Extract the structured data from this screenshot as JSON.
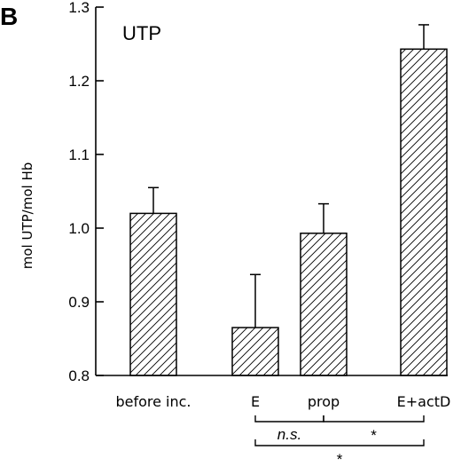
{
  "chart_data": {
    "type": "bar",
    "panel_label": "B",
    "title": "UTP",
    "ylabel": "mol UTP/mol Hb",
    "ylim": [
      0.8,
      1.3
    ],
    "yticks": [
      0.8,
      0.9,
      1.0,
      1.1,
      1.2,
      1.3
    ],
    "ytick_labels": [
      "0.8",
      "0.9",
      "1.0",
      "1.1",
      "1.2",
      "1.3"
    ],
    "categories": [
      "before inc.",
      "E",
      "prop",
      "E+actD"
    ],
    "values": [
      1.02,
      0.865,
      0.993,
      1.243
    ],
    "errors": [
      0.035,
      0.072,
      0.04,
      0.033
    ],
    "bar_fill": "hatched",
    "grid": false,
    "significance": [
      {
        "from": "E",
        "to": "prop",
        "label": "n.s."
      },
      {
        "from": "prop",
        "to": "E+actD",
        "label": "*"
      },
      {
        "from": "E",
        "to": "E+actD",
        "label": "*"
      }
    ]
  }
}
